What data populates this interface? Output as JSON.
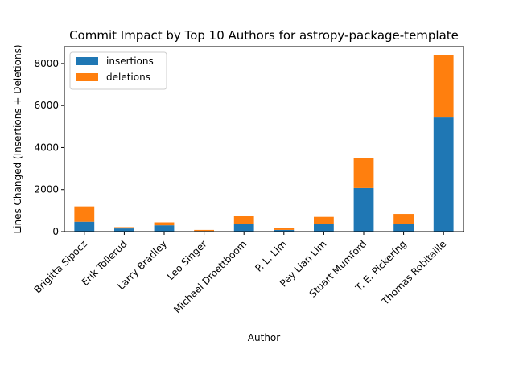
{
  "chart_data": {
    "type": "bar",
    "stacked": true,
    "title": "Commit Impact by Top 10 Authors for astropy-package-template",
    "xlabel": "Author",
    "ylabel": "Lines Changed (Insertions + Deletions)",
    "categories": [
      "Brigitta Sipocz",
      "Erik Tollerud",
      "Larry Bradley",
      "Leo Singer",
      "Michael Droettboom",
      "P. L. Lim",
      "Pey Lian Lim",
      "Stuart Mumford",
      "T. E. Pickering",
      "Thomas Robitaille"
    ],
    "series": [
      {
        "name": "insertions",
        "color": "#1f77b4",
        "values": [
          470,
          150,
          300,
          30,
          380,
          80,
          380,
          2070,
          380,
          5430
        ]
      },
      {
        "name": "deletions",
        "color": "#ff7f0e",
        "values": [
          730,
          60,
          140,
          50,
          360,
          80,
          320,
          1450,
          460,
          2950
        ]
      }
    ],
    "ylim": [
      0,
      8800
    ],
    "yticks": [
      0,
      2000,
      4000,
      6000,
      8000
    ],
    "legend_position": "top-left",
    "grid": false
  }
}
